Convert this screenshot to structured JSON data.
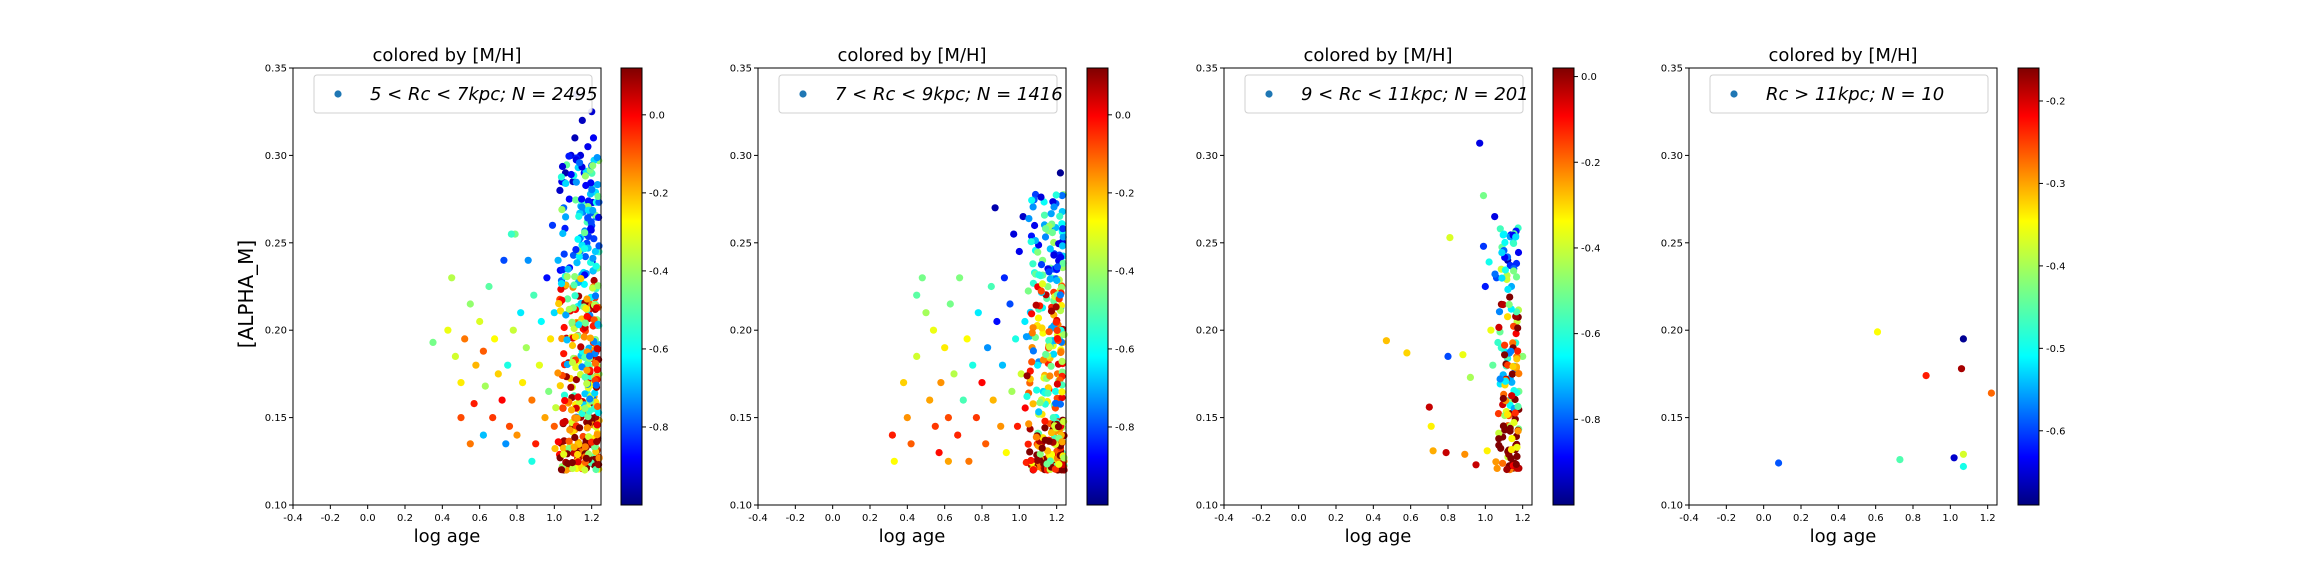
{
  "figure": {
    "shared_ylabel": "[ALPHA_M]",
    "colormap": [
      "#00007f",
      "#0000ff",
      "#007fff",
      "#00ffff",
      "#7fff7f",
      "#ffff00",
      "#ff7f00",
      "#ff0000",
      "#7f0000"
    ]
  },
  "chart_data": [
    {
      "type": "scatter",
      "title": "colored by [M/H]",
      "legend": "5 < Rc < 7kpc; N = 2495",
      "legend_prefix": "5 < Rc < 7kpc;",
      "legend_count": "N = 2495",
      "legend_location": "upper-right",
      "xlabel": "log age",
      "ylabel": "[ALPHA_M]",
      "xlim": [
        -0.4,
        1.25
      ],
      "ylim": [
        0.1,
        0.35
      ],
      "xticks": [
        "-0.4",
        "-0.2",
        "0.0",
        "0.2",
        "0.4",
        "0.6",
        "0.8",
        "1.0",
        "1.2"
      ],
      "yticks": [
        "0.10",
        "0.15",
        "0.20",
        "0.25",
        "0.30",
        "0.35"
      ],
      "colorbar": {
        "min": -1.0,
        "max": 0.12,
        "ticks": [
          "0.0",
          "-0.2",
          "-0.4",
          "-0.6",
          "-0.8"
        ],
        "tick_values": [
          0.0,
          -0.2,
          -0.4,
          -0.6,
          -0.8
        ]
      },
      "points": [
        [
          0.35,
          0.193,
          -0.45
        ],
        [
          0.43,
          0.2,
          -0.32
        ],
        [
          0.45,
          0.23,
          -0.38
        ],
        [
          0.47,
          0.185,
          -0.35
        ],
        [
          0.5,
          0.17,
          -0.28
        ],
        [
          0.52,
          0.195,
          -0.15
        ],
        [
          0.55,
          0.215,
          -0.42
        ],
        [
          0.57,
          0.158,
          -0.05
        ],
        [
          0.58,
          0.18,
          -0.22
        ],
        [
          0.6,
          0.205,
          -0.34
        ],
        [
          0.62,
          0.188,
          -0.12
        ],
        [
          0.63,
          0.168,
          -0.4
        ],
        [
          0.65,
          0.225,
          -0.48
        ],
        [
          0.67,
          0.15,
          -0.08
        ],
        [
          0.68,
          0.195,
          -0.3
        ],
        [
          0.7,
          0.175,
          -0.25
        ],
        [
          0.72,
          0.16,
          -0.02
        ],
        [
          0.73,
          0.24,
          -0.78
        ],
        [
          0.75,
          0.18,
          -0.55
        ],
        [
          0.76,
          0.145,
          -0.1
        ],
        [
          0.78,
          0.2,
          -0.36
        ],
        [
          0.79,
          0.255,
          -0.45
        ],
        [
          0.8,
          0.14,
          -0.18
        ],
        [
          0.82,
          0.21,
          -0.6
        ],
        [
          0.83,
          0.17,
          -0.28
        ],
        [
          0.85,
          0.19,
          -0.4
        ],
        [
          0.86,
          0.24,
          -0.7
        ],
        [
          0.88,
          0.16,
          -0.15
        ],
        [
          0.89,
          0.22,
          -0.5
        ],
        [
          0.9,
          0.135,
          -0.05
        ],
        [
          0.92,
          0.18,
          -0.33
        ],
        [
          0.93,
          0.205,
          -0.58
        ],
        [
          0.95,
          0.15,
          -0.2
        ],
        [
          0.96,
          0.23,
          -0.85
        ],
        [
          0.97,
          0.165,
          -0.44
        ],
        [
          0.98,
          0.195,
          -0.27
        ],
        [
          0.99,
          0.26,
          -0.8
        ],
        [
          1.0,
          0.145,
          -0.12
        ],
        [
          1.0,
          0.21,
          -0.62
        ],
        [
          0.88,
          0.125,
          -0.55
        ],
        [
          0.74,
          0.135,
          -0.7
        ],
        [
          0.62,
          0.14,
          -0.65
        ],
        [
          0.55,
          0.135,
          -0.15
        ],
        [
          0.5,
          0.15,
          -0.1
        ],
        [
          0.77,
          0.255,
          -0.52
        ],
        [
          1.02,
          0.24,
          -0.66
        ],
        [
          1.03,
          0.28,
          -0.92
        ],
        [
          1.04,
          0.285,
          -0.88
        ],
        [
          1.05,
          0.27,
          -0.75
        ],
        [
          1.06,
          0.29,
          -0.95
        ],
        [
          1.08,
          0.275,
          -0.86
        ],
        [
          1.09,
          0.3,
          -0.9
        ],
        [
          1.1,
          0.285,
          -0.92
        ],
        [
          1.11,
          0.31,
          -0.94
        ],
        [
          1.12,
          0.335,
          -0.96
        ],
        [
          1.14,
          0.3,
          -0.9
        ],
        [
          1.15,
          0.32,
          -0.93
        ],
        [
          1.16,
          0.29,
          -0.85
        ],
        [
          1.18,
          0.305,
          -0.88
        ],
        [
          1.2,
          0.325,
          -0.91
        ],
        [
          1.21,
          0.31,
          -0.87
        ]
      ],
      "bulk": {
        "count": 420,
        "x": [
          1.0,
          1.24
        ],
        "y": [
          0.12,
          0.3
        ],
        "dense_y_bias": 0.22,
        "seed": 11
      }
    },
    {
      "type": "scatter",
      "title": "colored by [M/H]",
      "legend": "7 < Rc < 9kpc; N = 1416",
      "legend_prefix": "7 < Rc < 9kpc;",
      "legend_count": "N = 1416",
      "legend_location": "upper-right",
      "xlabel": "log age",
      "xlim": [
        -0.4,
        1.25
      ],
      "ylim": [
        0.1,
        0.35
      ],
      "xticks": [
        "-0.4",
        "-0.2",
        "0.0",
        "0.2",
        "0.4",
        "0.6",
        "0.8",
        "1.0",
        "1.2"
      ],
      "yticks": [
        "0.10",
        "0.15",
        "0.20",
        "0.25",
        "0.30",
        "0.35"
      ],
      "colorbar": {
        "min": -1.0,
        "max": 0.12,
        "ticks": [
          "0.0",
          "-0.2",
          "-0.4",
          "-0.6",
          "-0.8"
        ],
        "tick_values": [
          0.0,
          -0.2,
          -0.4,
          -0.6,
          -0.8
        ]
      },
      "points": [
        [
          0.32,
          0.14,
          -0.05
        ],
        [
          0.33,
          0.125,
          -0.3
        ],
        [
          0.38,
          0.17,
          -0.25
        ],
        [
          0.42,
          0.135,
          -0.12
        ],
        [
          0.45,
          0.185,
          -0.35
        ],
        [
          0.48,
          0.23,
          -0.45
        ],
        [
          0.5,
          0.21,
          -0.4
        ],
        [
          0.52,
          0.16,
          -0.2
        ],
        [
          0.54,
          0.2,
          -0.32
        ],
        [
          0.55,
          0.145,
          -0.08
        ],
        [
          0.57,
          0.13,
          -0.03
        ],
        [
          0.58,
          0.17,
          -0.18
        ],
        [
          0.6,
          0.19,
          -0.28
        ],
        [
          0.62,
          0.15,
          -0.1
        ],
        [
          0.63,
          0.215,
          -0.45
        ],
        [
          0.65,
          0.175,
          -0.38
        ],
        [
          0.67,
          0.14,
          -0.06
        ],
        [
          0.68,
          0.23,
          -0.44
        ],
        [
          0.7,
          0.16,
          -0.5
        ],
        [
          0.72,
          0.195,
          -0.3
        ],
        [
          0.73,
          0.125,
          -0.15
        ],
        [
          0.75,
          0.18,
          -0.55
        ],
        [
          0.77,
          0.15,
          -0.08
        ],
        [
          0.78,
          0.21,
          -0.6
        ],
        [
          0.8,
          0.17,
          -0.02
        ],
        [
          0.82,
          0.135,
          -0.12
        ],
        [
          0.83,
          0.19,
          -0.7
        ],
        [
          0.85,
          0.225,
          -0.5
        ],
        [
          0.86,
          0.16,
          -0.22
        ],
        [
          0.87,
          0.27,
          -0.95
        ],
        [
          0.88,
          0.205,
          -0.85
        ],
        [
          0.9,
          0.145,
          -0.18
        ],
        [
          0.91,
          0.18,
          -0.65
        ],
        [
          0.92,
          0.23,
          -0.82
        ],
        [
          0.93,
          0.13,
          -0.3
        ],
        [
          0.95,
          0.215,
          -0.78
        ],
        [
          0.96,
          0.165,
          -0.4
        ],
        [
          0.97,
          0.255,
          -0.9
        ],
        [
          0.98,
          0.195,
          -0.55
        ],
        [
          0.99,
          0.145,
          -0.05
        ],
        [
          1.0,
          0.245,
          -0.88
        ],
        [
          1.01,
          0.175,
          -0.35
        ],
        [
          1.02,
          0.265,
          -0.92
        ],
        [
          1.03,
          0.205,
          -0.6
        ],
        [
          1.22,
          0.29,
          -0.98
        ],
        [
          0.45,
          0.22,
          -0.48
        ],
        [
          0.62,
          0.125,
          -0.2
        ],
        [
          0.4,
          0.15,
          -0.18
        ]
      ],
      "bulk": {
        "count": 330,
        "x": [
          1.02,
          1.24
        ],
        "y": [
          0.12,
          0.28
        ],
        "dense_y_bias": 0.2,
        "seed": 23
      }
    },
    {
      "type": "scatter",
      "title": "colored by [M/H]",
      "legend": "9 < Rc < 11kpc; N = 201",
      "legend_prefix": "9 < Rc < 11kpc;",
      "legend_count": "N = 201",
      "legend_location": "upper-right",
      "xlabel": "log age",
      "xlim": [
        -0.4,
        1.25
      ],
      "ylim": [
        0.1,
        0.35
      ],
      "xticks": [
        "-0.4",
        "-0.2",
        "0.0",
        "0.2",
        "0.4",
        "0.6",
        "0.8",
        "1.0",
        "1.2"
      ],
      "yticks": [
        "0.10",
        "0.15",
        "0.20",
        "0.25",
        "0.30",
        "0.35"
      ],
      "colorbar": {
        "min": -1.0,
        "max": 0.02,
        "ticks": [
          "0.0",
          "-0.2",
          "-0.4",
          "-0.6",
          "-0.8"
        ],
        "tick_values": [
          0.0,
          -0.2,
          -0.4,
          -0.6,
          -0.8
        ]
      },
      "points": [
        [
          0.47,
          0.194,
          -0.3
        ],
        [
          0.58,
          0.187,
          -0.32
        ],
        [
          0.7,
          0.156,
          -0.05
        ],
        [
          0.71,
          0.145,
          -0.35
        ],
        [
          0.72,
          0.131,
          -0.28
        ],
        [
          0.79,
          0.13,
          -0.05
        ],
        [
          0.8,
          0.185,
          -0.8
        ],
        [
          0.81,
          0.253,
          -0.4
        ],
        [
          0.88,
          0.186,
          -0.38
        ],
        [
          0.89,
          0.129,
          -0.25
        ],
        [
          0.92,
          0.173,
          -0.45
        ],
        [
          0.95,
          0.123,
          -0.05
        ],
        [
          0.97,
          0.307,
          -0.9
        ],
        [
          0.99,
          0.277,
          -0.5
        ],
        [
          0.99,
          0.248,
          -0.82
        ],
        [
          1.0,
          0.225,
          -0.85
        ],
        [
          1.01,
          0.131,
          -0.35
        ],
        [
          1.02,
          0.239,
          -0.6
        ],
        [
          1.03,
          0.2,
          -0.38
        ],
        [
          1.04,
          0.18,
          -0.52
        ],
        [
          1.05,
          0.265,
          -0.9
        ],
        [
          1.06,
          0.23,
          -0.8
        ],
        [
          1.08,
          0.258,
          -0.55
        ],
        [
          1.1,
          0.255,
          -0.6
        ],
        [
          1.12,
          0.24,
          -0.95
        ],
        [
          1.14,
          0.225,
          -0.7
        ],
        [
          1.15,
          0.25,
          -0.62
        ],
        [
          1.17,
          0.205,
          -0.42
        ],
        [
          1.18,
          0.165,
          -0.5
        ],
        [
          1.2,
          0.185,
          -0.48
        ]
      ],
      "bulk": {
        "count": 150,
        "x": [
          1.04,
          1.18
        ],
        "y": [
          0.12,
          0.26
        ],
        "dense_y_bias": 0.18,
        "seed": 37
      }
    },
    {
      "type": "scatter",
      "title": "colored by [M/H]",
      "legend": "Rc > 11kpc; N = 10",
      "legend_prefix": "Rc > 11kpc;",
      "legend_count": "N = 10",
      "legend_location": "upper-right",
      "xlabel": "log age",
      "xlim": [
        -0.4,
        1.25
      ],
      "ylim": [
        0.1,
        0.35
      ],
      "xticks": [
        "-0.4",
        "-0.2",
        "0.0",
        "0.2",
        "0.4",
        "0.6",
        "0.8",
        "1.0",
        "1.2"
      ],
      "yticks": [
        "0.10",
        "0.15",
        "0.20",
        "0.25",
        "0.30",
        "0.35"
      ],
      "colorbar": {
        "min": -0.69,
        "max": -0.16,
        "ticks": [
          "-0.2",
          "-0.3",
          "-0.4",
          "-0.5",
          "-0.6"
        ],
        "tick_values": [
          -0.2,
          -0.3,
          -0.4,
          -0.5,
          -0.6
        ]
      },
      "points": [
        [
          0.08,
          0.124,
          -0.58
        ],
        [
          0.61,
          0.199,
          -0.36
        ],
        [
          0.73,
          0.126,
          -0.45
        ],
        [
          0.87,
          0.174,
          -0.24
        ],
        [
          1.02,
          0.127,
          -0.65
        ],
        [
          1.06,
          0.178,
          -0.18
        ],
        [
          1.07,
          0.195,
          -0.68
        ],
        [
          1.07,
          0.129,
          -0.38
        ],
        [
          1.07,
          0.122,
          -0.48
        ],
        [
          1.22,
          0.164,
          -0.28
        ]
      ],
      "bulk": {
        "count": 0,
        "x": [
          1.0,
          1.2
        ],
        "y": [
          0.12,
          0.2
        ],
        "dense_y_bias": 0.15,
        "seed": 1
      }
    }
  ]
}
